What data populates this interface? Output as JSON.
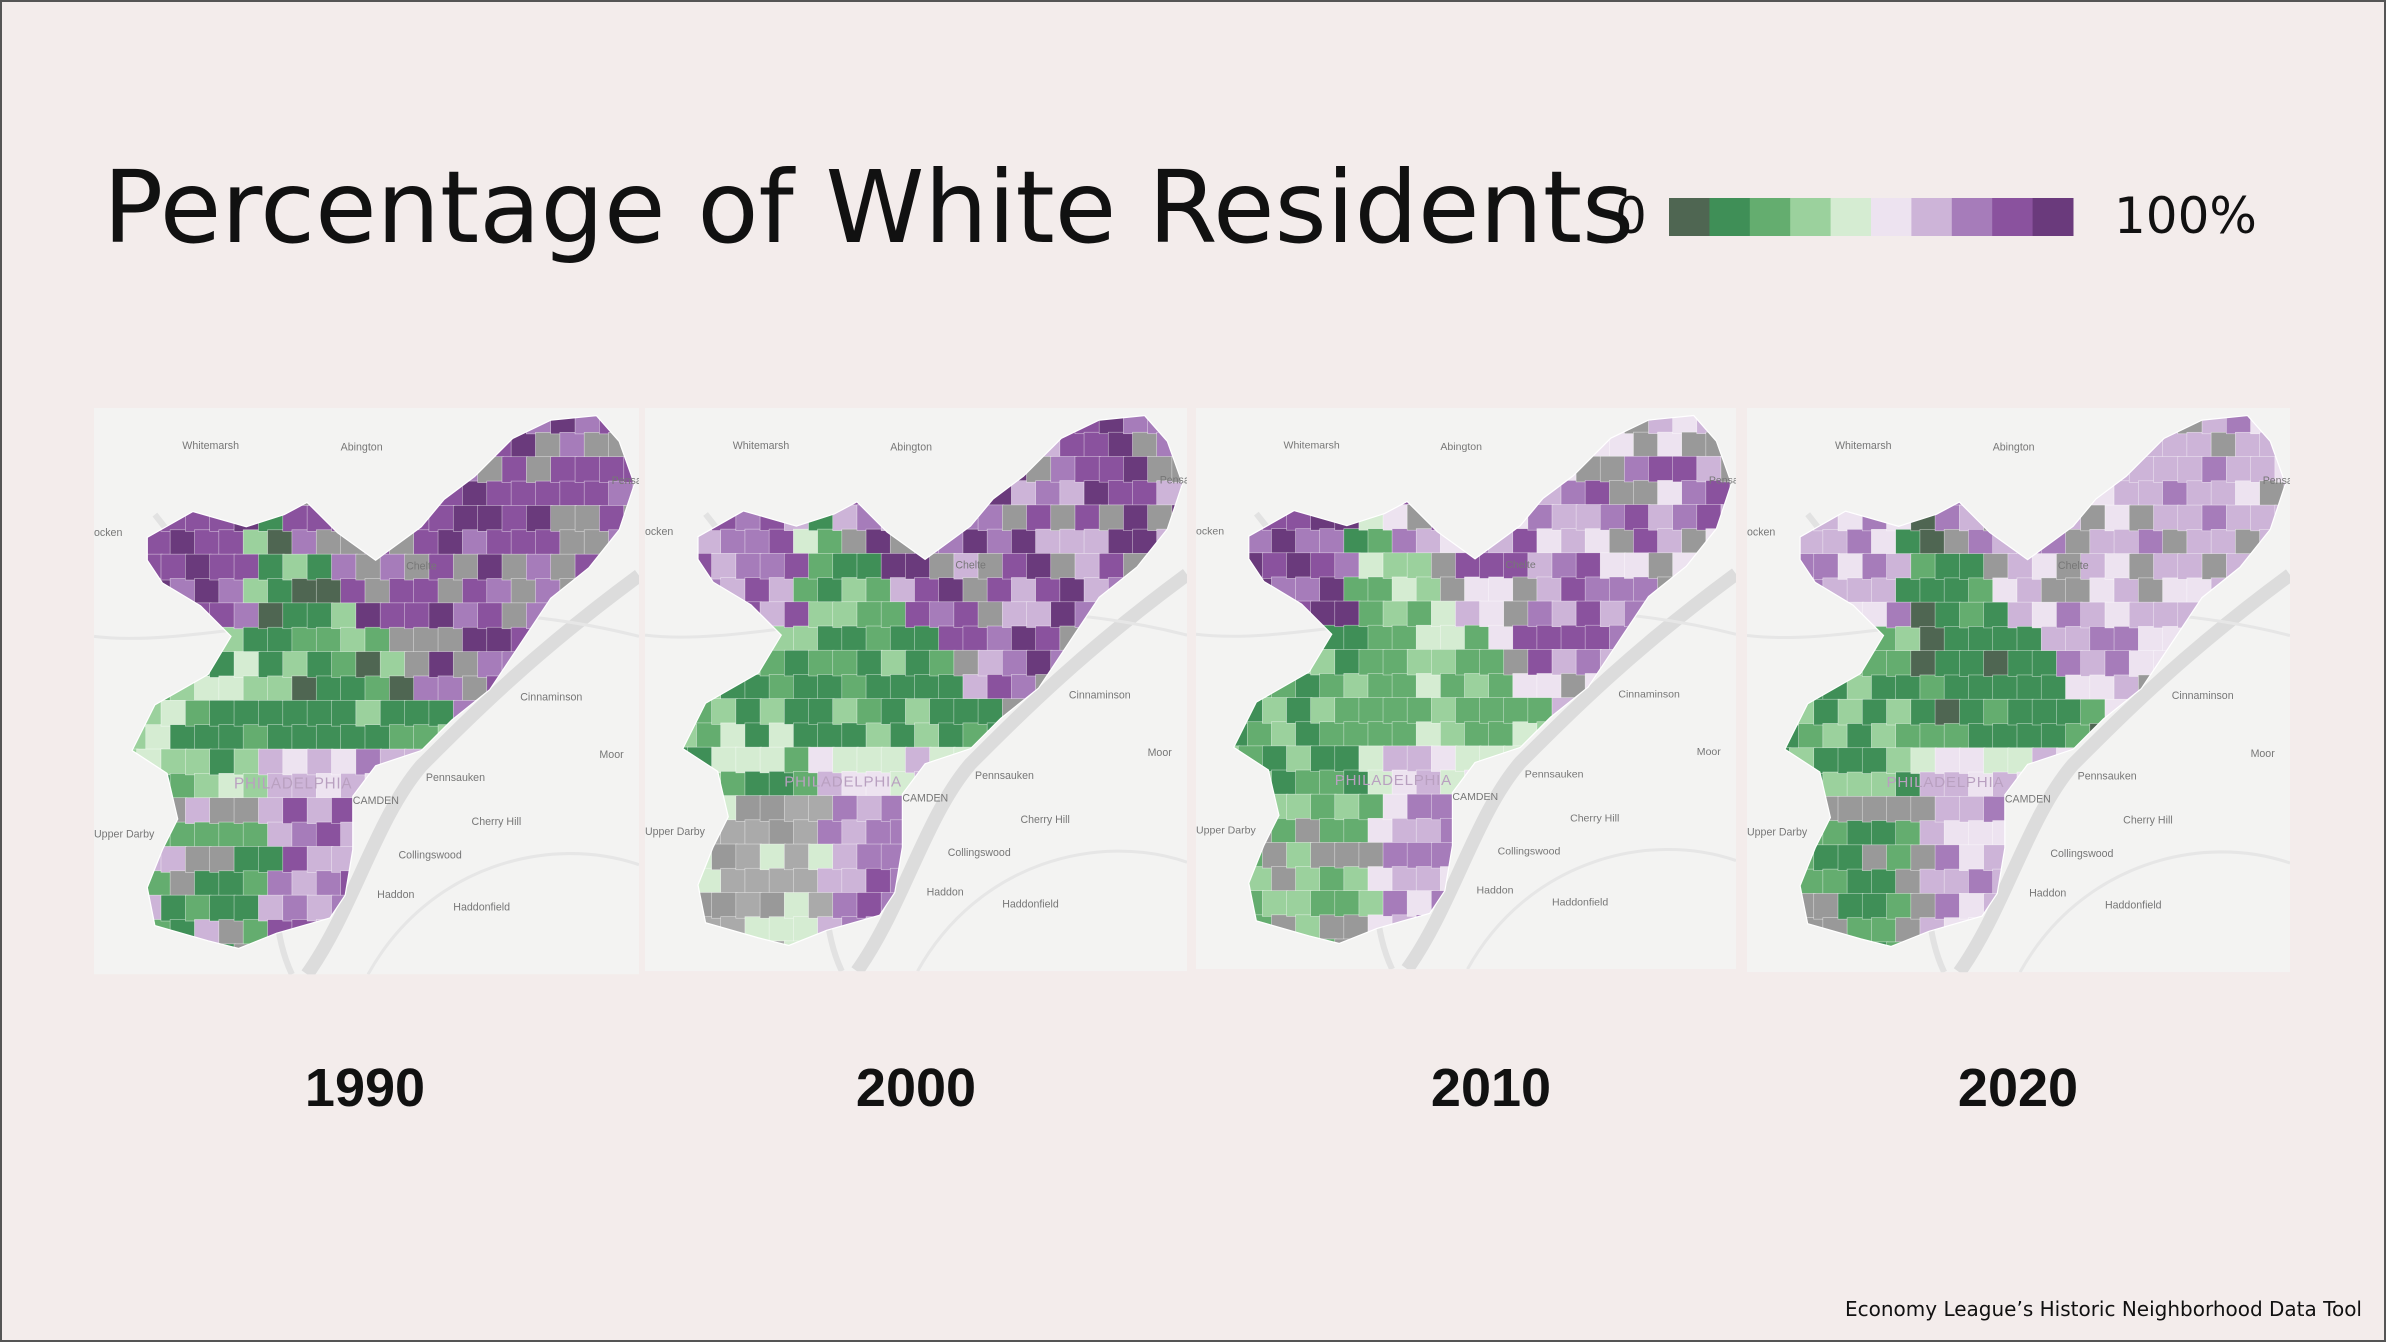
{
  "header": {
    "title": "Percentage of White Residents"
  },
  "legend": {
    "min_label": "0",
    "max_label": "100%",
    "colors": [
      "#4f6652",
      "#3f8f57",
      "#64ad6f",
      "#9bd19d",
      "#d5ecd2",
      "#ede3f0",
      "#cdb4d8",
      "#a67cba",
      "#8a529e",
      "#6a3a7c"
    ]
  },
  "basemap_labels": [
    "Whitemarsh",
    "Abington",
    "Pensal",
    "ocken",
    "Chelte",
    "Cinnaminson",
    "Moor",
    "Pennsauken",
    "PHILADELPHIA",
    "CAMDEN",
    "Cherry Hill",
    "Upper Darby",
    "Collingswood",
    "Haddon",
    "Haddonfield"
  ],
  "maps": [
    {
      "year": "1990"
    },
    {
      "year": "2000"
    },
    {
      "year": "2010"
    },
    {
      "year": "2020"
    }
  ],
  "footer": {
    "source": "Economy League’s Historic Neighborhood Data Tool"
  }
}
